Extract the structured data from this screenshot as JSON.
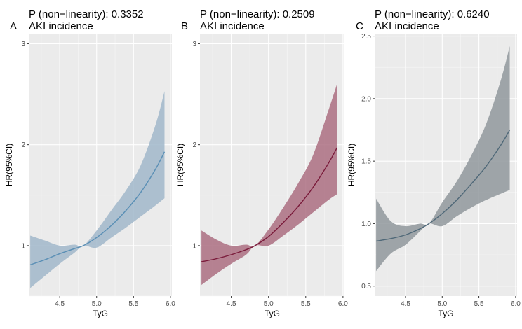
{
  "chart_data": [
    {
      "type": "line",
      "panel_letter": "A",
      "title_line1": "P (non−linearity): 0.3352",
      "title_line2": "AKI incidence",
      "xlabel": "TyG",
      "ylabel": "HR(95%CI)",
      "xlim": [
        4.08,
        6.02
      ],
      "xticks": [
        4.5,
        5.0,
        5.5,
        6.0
      ],
      "xtick_labels": [
        "4.5",
        "5.0",
        "5.5",
        "6.0"
      ],
      "ylim": [
        0.5,
        3.1
      ],
      "yticks": [
        1,
        2,
        3
      ],
      "ytick_labels": [
        "1",
        "2",
        "3"
      ],
      "line_color": "#5a8fb5",
      "fill_color": "#9db5c8",
      "series": [
        {
          "name": "HR",
          "x": [
            4.1,
            4.3,
            4.5,
            4.7,
            4.82,
            5.0,
            5.2,
            5.4,
            5.6,
            5.8,
            5.92
          ],
          "y": [
            0.81,
            0.86,
            0.92,
            0.97,
            1.0,
            1.08,
            1.2,
            1.35,
            1.53,
            1.76,
            1.93
          ],
          "lower": [
            0.58,
            0.7,
            0.82,
            0.93,
            1.0,
            0.98,
            1.08,
            1.18,
            1.29,
            1.4,
            1.47
          ],
          "upper": [
            1.1,
            1.05,
            1.0,
            1.01,
            1.0,
            1.15,
            1.35,
            1.55,
            1.8,
            2.2,
            2.53
          ]
        }
      ]
    },
    {
      "type": "line",
      "panel_letter": "B",
      "title_line1": "P (non−linearity): 0.2509",
      "title_line2": "AKI incidence",
      "xlabel": "TyG",
      "ylabel": "HR(95%CI)",
      "xlim": [
        4.08,
        6.02
      ],
      "xticks": [
        4.5,
        5.0,
        5.5,
        6.0
      ],
      "xtick_labels": [
        "4.5",
        "5.0",
        "5.5",
        "6.0"
      ],
      "ylim": [
        0.5,
        3.1
      ],
      "yticks": [
        1,
        2,
        3
      ],
      "ytick_labels": [
        "1",
        "2",
        "3"
      ],
      "line_color": "#7a1a3a",
      "fill_color": "#a8697c",
      "series": [
        {
          "name": "HR",
          "x": [
            4.1,
            4.3,
            4.5,
            4.7,
            4.82,
            5.0,
            5.2,
            5.4,
            5.6,
            5.8,
            5.92
          ],
          "y": [
            0.84,
            0.87,
            0.91,
            0.96,
            1.0,
            1.09,
            1.23,
            1.39,
            1.58,
            1.81,
            1.97
          ],
          "lower": [
            0.61,
            0.72,
            0.82,
            0.91,
            1.0,
            1.0,
            1.1,
            1.21,
            1.33,
            1.45,
            1.51
          ],
          "upper": [
            1.15,
            1.06,
            1.0,
            1.01,
            1.0,
            1.16,
            1.38,
            1.62,
            1.9,
            2.33,
            2.6
          ]
        }
      ]
    },
    {
      "type": "line",
      "panel_letter": "C",
      "title_line1": "P (non−linearity): 0.6240",
      "title_line2": "AKI incidence",
      "xlabel": "TyG",
      "ylabel": "HR(95%CI)",
      "xlim": [
        4.08,
        6.02
      ],
      "xticks": [
        4.5,
        5.0,
        5.5,
        6.0
      ],
      "xtick_labels": [
        "4.5",
        "5.0",
        "5.5",
        "6.0"
      ],
      "ylim": [
        0.42,
        2.52
      ],
      "yticks": [
        0.5,
        1.0,
        1.5,
        2.0,
        2.5
      ],
      "ytick_labels": [
        "0.5",
        "1.0",
        "1.5",
        "2.0",
        "2.5"
      ],
      "line_color": "#4f6878",
      "fill_color": "#8c9499",
      "series": [
        {
          "name": "HR",
          "x": [
            4.1,
            4.3,
            4.5,
            4.7,
            4.82,
            5.0,
            5.2,
            5.4,
            5.6,
            5.8,
            5.92
          ],
          "y": [
            0.86,
            0.88,
            0.91,
            0.96,
            1.0,
            1.08,
            1.19,
            1.32,
            1.46,
            1.63,
            1.75
          ],
          "lower": [
            0.62,
            0.76,
            0.83,
            0.94,
            1.0,
            0.98,
            1.06,
            1.13,
            1.19,
            1.24,
            1.27
          ],
          "upper": [
            1.2,
            1.02,
            0.98,
            1.0,
            1.0,
            1.17,
            1.34,
            1.55,
            1.8,
            2.15,
            2.42
          ]
        }
      ]
    }
  ]
}
